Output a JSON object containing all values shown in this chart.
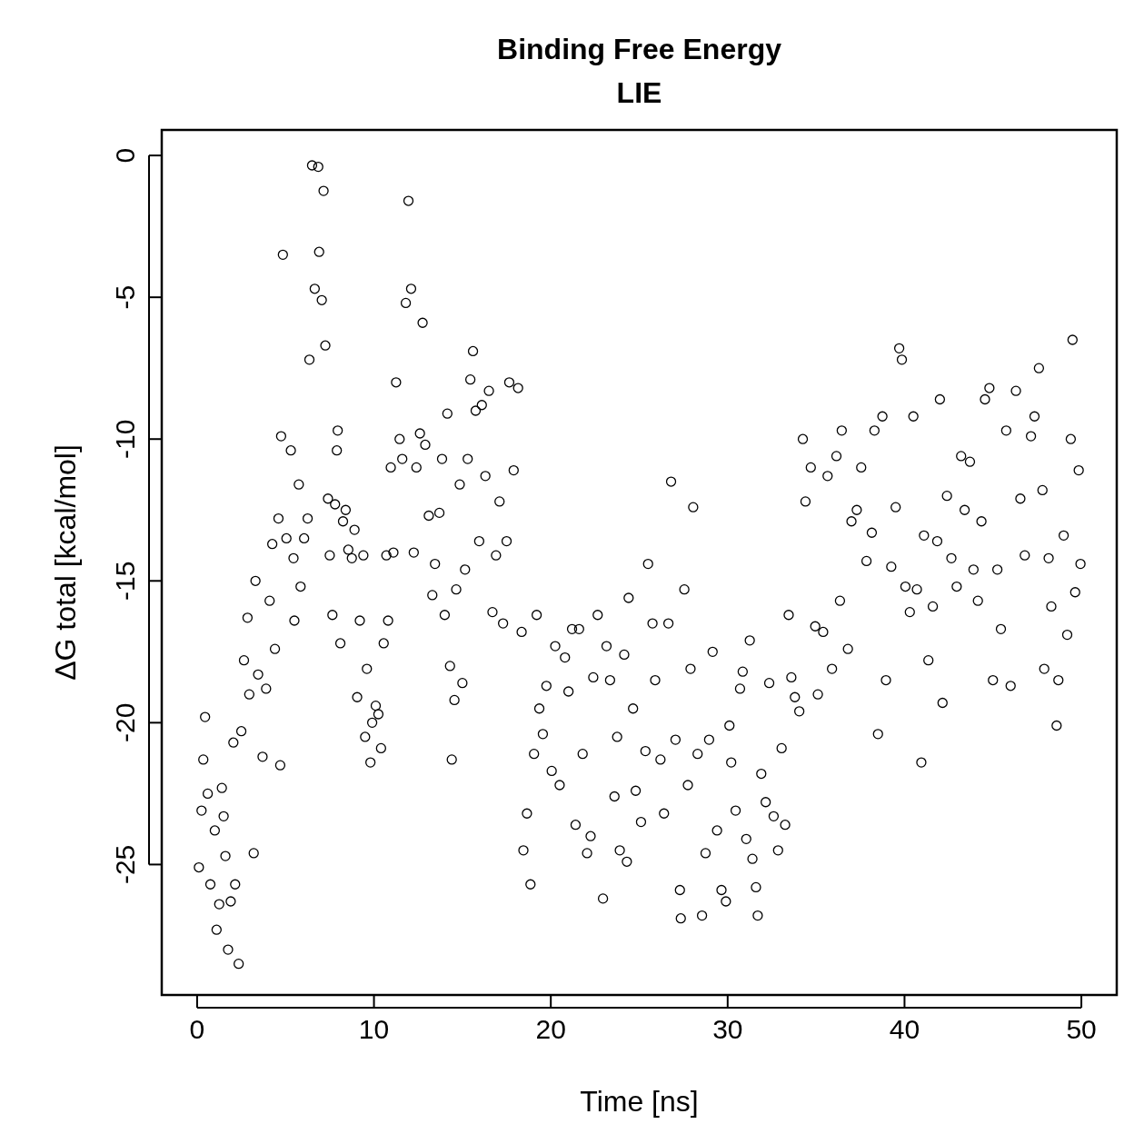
{
  "chart_data": {
    "type": "scatter",
    "title": "Binding Free Energy",
    "subtitle": "LIE",
    "xlabel": "Time [ns]",
    "ylabel": "ΔG total [kcal/mol]",
    "xlim": [
      -2,
      52
    ],
    "ylim": [
      -29.6,
      0.9
    ],
    "xticks": [
      0,
      10,
      20,
      30,
      40,
      50
    ],
    "yticks": [
      -25,
      -20,
      -15,
      -10,
      -5,
      0
    ],
    "marker": "circle",
    "series": [
      {
        "color": "#000000",
        "x": [
          0.1,
          0.25,
          0.45,
          0.35,
          0.6,
          0.75,
          1.0,
          1.1,
          1.25,
          1.4,
          1.5,
          1.6,
          1.75,
          1.9,
          2.05,
          2.15,
          2.35,
          2.5,
          2.65,
          2.85,
          2.95,
          3.2,
          3.3,
          3.45,
          3.7,
          3.9,
          4.1,
          4.25,
          4.4,
          4.6,
          4.7,
          4.75,
          4.85,
          5.05,
          5.3,
          5.45,
          5.5,
          5.75,
          5.85,
          6.05,
          6.25,
          6.35,
          6.5,
          6.65,
          6.85,
          6.9,
          7.05,
          7.15,
          7.25,
          7.4,
          7.5,
          7.65,
          7.8,
          7.95,
          7.9,
          8.1,
          8.25,
          8.4,
          8.55,
          8.75,
          8.9,
          9.05,
          9.2,
          9.4,
          9.5,
          9.6,
          9.8,
          9.9,
          10.1,
          10.25,
          10.4,
          10.55,
          10.7,
          10.8,
          10.95,
          11.1,
          11.25,
          11.45,
          11.6,
          11.8,
          11.95,
          12.1,
          12.25,
          12.4,
          12.6,
          12.75,
          12.9,
          13.1,
          13.3,
          13.45,
          13.7,
          13.85,
          14.0,
          14.15,
          14.3,
          14.4,
          14.55,
          14.65,
          14.85,
          15.0,
          15.15,
          15.3,
          15.45,
          15.6,
          15.75,
          15.95,
          16.1,
          16.3,
          16.5,
          16.7,
          16.9,
          17.1,
          17.3,
          17.5,
          17.65,
          17.9,
          18.15,
          18.35,
          18.45,
          18.65,
          18.85,
          19.05,
          19.2,
          19.35,
          19.55,
          19.75,
          20.05,
          20.25,
          20.5,
          20.8,
          21.0,
          21.2,
          21.4,
          21.6,
          21.8,
          22.05,
          22.25,
          22.4,
          22.65,
          22.95,
          23.15,
          23.35,
          23.6,
          23.75,
          23.9,
          24.15,
          24.3,
          24.4,
          24.65,
          24.8,
          25.1,
          25.35,
          25.5,
          25.75,
          25.9,
          26.2,
          26.4,
          26.65,
          26.8,
          27.05,
          27.3,
          27.35,
          27.55,
          27.75,
          27.9,
          28.05,
          28.3,
          28.55,
          28.75,
          28.95,
          29.15,
          29.4,
          29.65,
          29.9,
          30.1,
          30.2,
          30.45,
          30.7,
          30.85,
          31.05,
          31.25,
          31.4,
          31.6,
          31.7,
          31.9,
          32.15,
          32.35,
          32.6,
          32.85,
          33.05,
          33.25,
          33.45,
          33.6,
          33.8,
          34.05,
          34.25,
          34.4,
          34.7,
          34.95,
          35.1,
          35.4,
          35.65,
          35.9,
          36.15,
          36.35,
          36.45,
          36.8,
          37.0,
          37.3,
          37.55,
          37.85,
          38.15,
          38.3,
          38.5,
          38.75,
          38.95,
          39.25,
          39.5,
          39.7,
          39.85,
          40.05,
          40.3,
          40.5,
          40.7,
          40.95,
          41.1,
          41.35,
          41.6,
          41.85,
          42.0,
          42.15,
          42.4,
          42.65,
          42.95,
          43.2,
          43.4,
          43.7,
          43.9,
          44.15,
          44.35,
          44.55,
          44.8,
          45.0,
          45.25,
          45.45,
          45.75,
          46.0,
          46.3,
          46.55,
          46.8,
          47.15,
          47.35,
          47.6,
          47.8,
          47.9,
          48.15,
          48.3,
          48.6,
          48.7,
          49.0,
          49.2,
          49.4,
          49.5,
          49.65,
          49.85,
          49.95
        ],
        "values": [
          -25.1,
          -23.1,
          -19.8,
          -21.3,
          -22.5,
          -25.7,
          -23.8,
          -27.3,
          -26.4,
          -22.3,
          -23.3,
          -24.7,
          -28.0,
          -26.3,
          -20.7,
          -25.7,
          -28.5,
          -20.3,
          -17.8,
          -16.3,
          -19.0,
          -24.6,
          -15.0,
          -18.3,
          -21.2,
          -18.8,
          -15.7,
          -13.7,
          -17.4,
          -12.8,
          -21.5,
          -9.9,
          -3.5,
          -13.5,
          -10.4,
          -14.2,
          -16.4,
          -11.6,
          -15.2,
          -13.5,
          -12.8,
          -7.2,
          -0.35,
          -4.7,
          -0.4,
          -3.4,
          -5.1,
          -1.25,
          -6.7,
          -12.1,
          -14.1,
          -16.2,
          -12.3,
          -9.7,
          -10.4,
          -17.2,
          -12.9,
          -12.5,
          -13.9,
          -14.2,
          -13.2,
          -19.1,
          -16.4,
          -14.1,
          -20.5,
          -18.1,
          -21.4,
          -20.0,
          -19.4,
          -19.7,
          -20.9,
          -17.2,
          -14.1,
          -16.4,
          -11.0,
          -14.0,
          -8.0,
          -10.0,
          -10.7,
          -5.2,
          -1.6,
          -4.7,
          -14.0,
          -11.0,
          -9.8,
          -5.9,
          -10.2,
          -12.7,
          -15.5,
          -14.4,
          -12.6,
          -10.7,
          -16.2,
          -9.1,
          -18.0,
          -21.3,
          -19.2,
          -15.3,
          -11.6,
          -18.6,
          -14.6,
          -10.7,
          -7.9,
          -6.9,
          -9.0,
          -13.6,
          -8.8,
          -11.3,
          -8.3,
          -16.1,
          -14.1,
          -12.2,
          -16.5,
          -13.6,
          -8.0,
          -11.1,
          -8.2,
          -16.8,
          -24.5,
          -23.2,
          -25.7,
          -21.1,
          -16.2,
          -19.5,
          -20.4,
          -18.7,
          -21.7,
          -17.3,
          -22.2,
          -17.7,
          -18.9,
          -16.7,
          -23.6,
          -16.7,
          -21.1,
          -24.6,
          -24.0,
          -18.4,
          -16.2,
          -26.2,
          -17.3,
          -18.5,
          -22.6,
          -20.5,
          -24.5,
          -17.6,
          -24.9,
          -15.6,
          -19.5,
          -22.4,
          -23.5,
          -21.0,
          -14.4,
          -16.5,
          -18.5,
          -21.3,
          -23.2,
          -16.5,
          -11.5,
          -20.6,
          -25.9,
          -26.9,
          -15.3,
          -22.2,
          -18.1,
          -12.4,
          -21.1,
          -26.8,
          -24.6,
          -20.6,
          -17.5,
          -23.8,
          -25.9,
          -26.3,
          -20.1,
          -21.4,
          -23.1,
          -18.8,
          -18.2,
          -24.1,
          -17.1,
          -24.8,
          -25.8,
          -26.8,
          -21.8,
          -22.8,
          -18.6,
          -23.3,
          -24.5,
          -20.9,
          -23.6,
          -16.2,
          -18.4,
          -19.1,
          -19.6,
          -10.0,
          -12.2,
          -11.0,
          -16.6,
          -19.0,
          -16.8,
          -11.3,
          -18.1,
          -10.6,
          -15.7,
          -9.7,
          -17.4,
          -12.9,
          -12.5,
          -11.0,
          -14.3,
          -13.3,
          -9.7,
          -20.4,
          -9.2,
          -18.5,
          -14.5,
          -12.4,
          -6.8,
          -7.2,
          -15.2,
          -16.1,
          -9.2,
          -15.3,
          -21.4,
          -13.4,
          -17.8,
          -15.9,
          -13.6,
          -8.6,
          -19.3,
          -12.0,
          -14.2,
          -15.2,
          -10.6,
          -12.5,
          -10.8,
          -14.6,
          -15.7,
          -12.9,
          -8.6,
          -8.2,
          -18.5,
          -14.6,
          -16.7,
          -9.7,
          -18.7,
          -8.3,
          -12.1,
          -14.1,
          -9.9,
          -9.2,
          -7.5,
          -11.8,
          -18.1,
          -14.2,
          -15.9,
          -20.1,
          -18.5,
          -13.4,
          -16.9,
          -10.0,
          -6.5,
          -15.4,
          -11.1,
          -14.4
        ]
      }
    ]
  }
}
